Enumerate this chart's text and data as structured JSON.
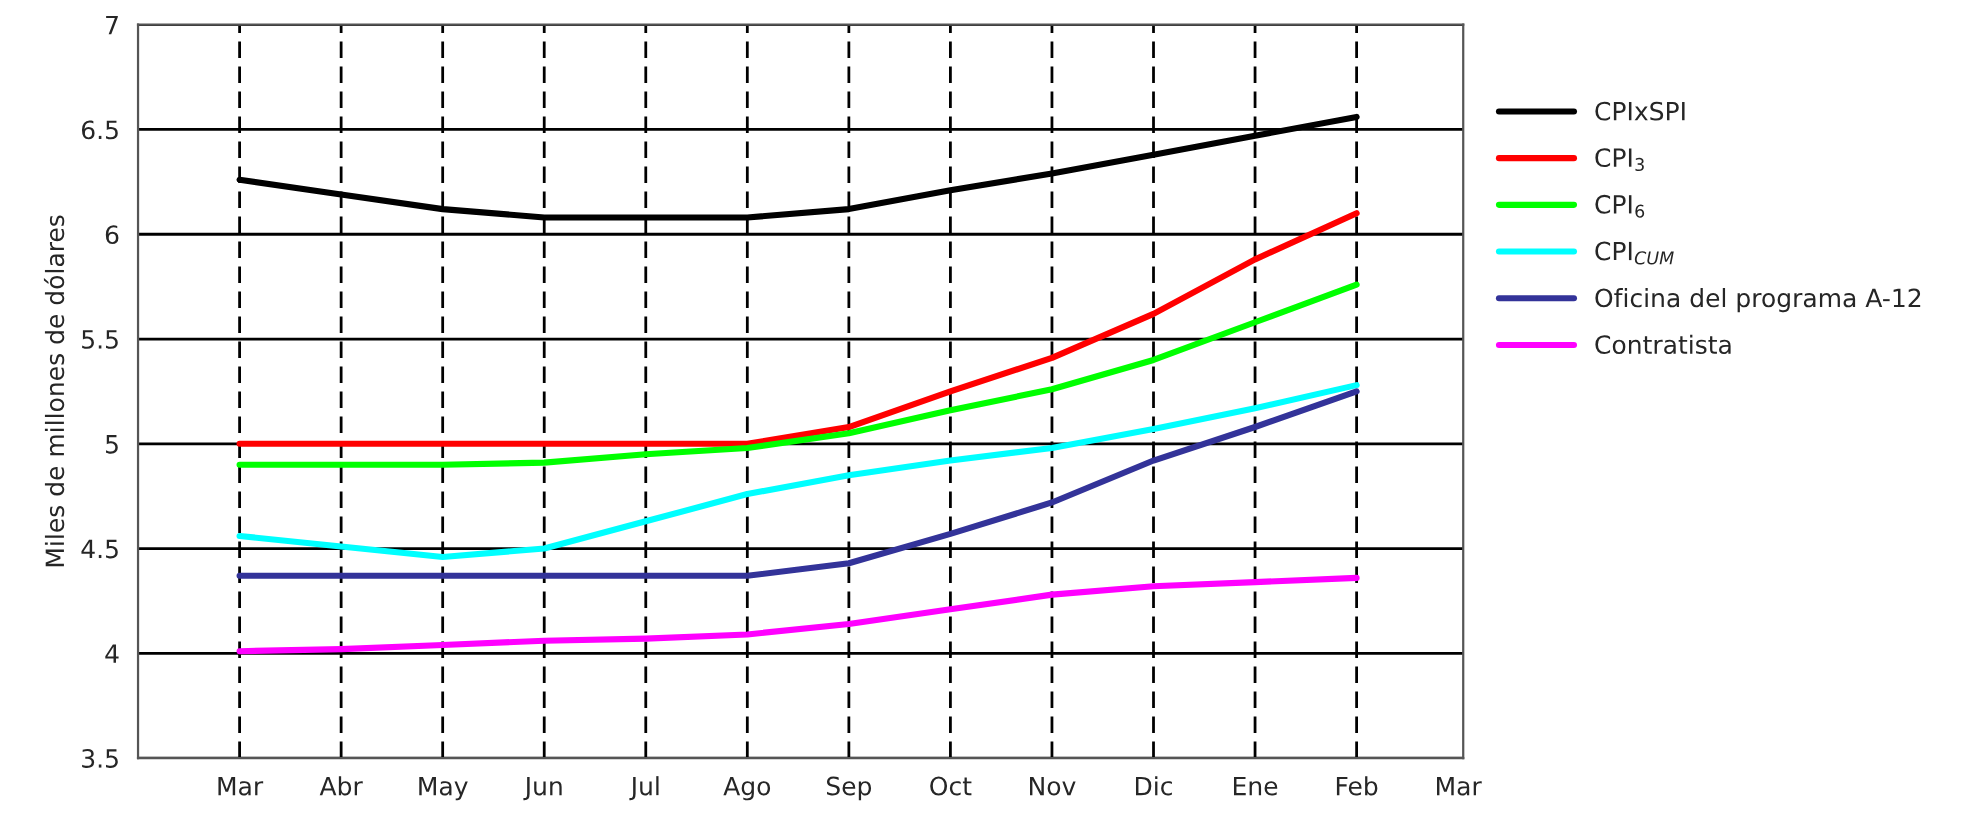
{
  "chart_data": {
    "type": "line",
    "ylabel": "Miles de millones de dólares",
    "categories": [
      "Mar",
      "Abr",
      "May",
      "Jun",
      "Jul",
      "Ago",
      "Sep",
      "Oct",
      "Nov",
      "Dic",
      "Ene",
      "Feb",
      "Mar"
    ],
    "ylim": [
      3.5,
      7
    ],
    "yticks": [
      3.5,
      4,
      4.5,
      5,
      5.5,
      6,
      6.5,
      7
    ],
    "grid": true,
    "legend": "right",
    "marker": "none",
    "line_style": "solid",
    "series": [
      {
        "name": "CPIxSPI",
        "color": "#000000",
        "values": [
          6.26,
          6.19,
          6.12,
          6.08,
          6.08,
          6.08,
          6.12,
          6.21,
          6.29,
          6.38,
          6.47,
          6.56,
          null
        ]
      },
      {
        "name": "CPI$_{3}$",
        "color": "#ff0000",
        "values": [
          5.0,
          5.0,
          5.0,
          5.0,
          5.0,
          5.0,
          5.08,
          5.25,
          5.41,
          5.62,
          5.88,
          6.1,
          null
        ]
      },
      {
        "name": "CPI$_{6}$",
        "color": "#00ff00",
        "values": [
          4.9,
          4.9,
          4.9,
          4.91,
          4.95,
          4.98,
          5.05,
          5.16,
          5.26,
          5.4,
          5.58,
          5.76,
          null
        ]
      },
      {
        "name": "CPI$_{CUM}$",
        "color": "#00ffff",
        "values": [
          4.56,
          4.51,
          4.46,
          4.5,
          4.63,
          4.76,
          4.85,
          4.92,
          4.98,
          5.07,
          5.17,
          5.28,
          null
        ]
      },
      {
        "name": "Oficina del programa A-12",
        "color": "#333399",
        "values": [
          4.37,
          4.37,
          4.37,
          4.37,
          4.37,
          4.37,
          4.43,
          4.57,
          4.72,
          4.92,
          5.08,
          5.25,
          null
        ]
      },
      {
        "name": "Contratista",
        "color": "#ff00ff",
        "values": [
          4.01,
          4.02,
          4.04,
          4.06,
          4.07,
          4.09,
          4.14,
          4.21,
          4.28,
          4.32,
          4.34,
          4.36,
          null
        ]
      }
    ]
  }
}
